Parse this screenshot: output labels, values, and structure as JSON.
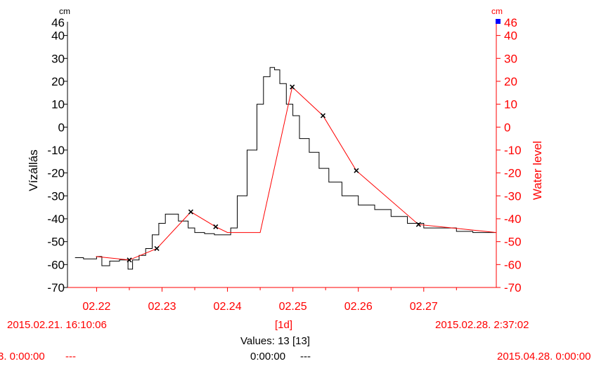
{
  "chart_data": {
    "type": "line",
    "left_axis": {
      "unit": "cm",
      "label": "Vízállás",
      "ticks": [
        40,
        30,
        20,
        10,
        0,
        -10,
        -20,
        -30,
        -40,
        -50,
        -60,
        -70
      ],
      "top_label": 46,
      "ylim": [
        -70,
        46
      ],
      "color": "#000000"
    },
    "right_axis": {
      "unit": "cm",
      "label": "Water level",
      "ticks": [
        40,
        30,
        20,
        10,
        0,
        -10,
        -20,
        -30,
        -40,
        -50,
        -60,
        -70
      ],
      "top_label": 46,
      "ylim": [
        -70,
        46
      ],
      "color": "#ff0000"
    },
    "x_axis": {
      "range_days": [
        21.673,
        28.109
      ],
      "ticks": [
        {
          "day": 22,
          "label": "02.22"
        },
        {
          "day": 23,
          "label": "02.23"
        },
        {
          "day": 24,
          "label": "02.24"
        },
        {
          "day": 25,
          "label": "02.25"
        },
        {
          "day": 26,
          "label": "02.26"
        },
        {
          "day": 27,
          "label": "02.27"
        }
      ]
    },
    "series": [
      {
        "color": "#000000",
        "style": "step",
        "points": [
          [
            21.67,
            -57
          ],
          [
            21.8,
            -57.5
          ],
          [
            21.93,
            -57.5
          ],
          [
            22.0,
            -56.5
          ],
          [
            22.08,
            -60.5
          ],
          [
            22.2,
            -58.5
          ],
          [
            22.35,
            -58
          ],
          [
            22.48,
            -62
          ],
          [
            22.55,
            -58
          ],
          [
            22.65,
            -56
          ],
          [
            22.75,
            -53
          ],
          [
            22.85,
            -47
          ],
          [
            22.95,
            -42
          ],
          [
            23.05,
            -38
          ],
          [
            23.12,
            -38
          ],
          [
            23.25,
            -41
          ],
          [
            23.4,
            -44
          ],
          [
            23.5,
            -46
          ],
          [
            23.65,
            -46.5
          ],
          [
            23.8,
            -47
          ],
          [
            23.95,
            -47
          ],
          [
            24.05,
            -44
          ],
          [
            24.15,
            -30
          ],
          [
            24.3,
            -10
          ],
          [
            24.45,
            10
          ],
          [
            24.55,
            22
          ],
          [
            24.65,
            26
          ],
          [
            24.72,
            25
          ],
          [
            24.8,
            19
          ],
          [
            24.9,
            10
          ],
          [
            25.0,
            5
          ],
          [
            25.1,
            -5
          ],
          [
            25.25,
            -11
          ],
          [
            25.4,
            -18
          ],
          [
            25.55,
            -24
          ],
          [
            25.75,
            -30
          ],
          [
            26.0,
            -34
          ],
          [
            26.25,
            -36
          ],
          [
            26.5,
            -39
          ],
          [
            26.75,
            -42
          ],
          [
            27.0,
            -44
          ],
          [
            27.25,
            -44
          ],
          [
            27.5,
            -45.5
          ],
          [
            27.75,
            -46
          ],
          [
            28.1,
            -46
          ]
        ]
      },
      {
        "color": "#ff0000",
        "style": "line",
        "points": [
          [
            21.99,
            -56.5
          ],
          [
            22.5,
            -58
          ],
          [
            22.92,
            -53
          ],
          [
            23.44,
            -37
          ],
          [
            23.82,
            -43.5
          ],
          [
            24.0,
            -46
          ],
          [
            24.5,
            -46
          ],
          [
            24.99,
            17.5
          ],
          [
            25.46,
            5
          ],
          [
            25.97,
            -19
          ],
          [
            26.92,
            -42.5
          ],
          [
            28.11,
            -46
          ]
        ]
      }
    ],
    "markers": [
      [
        22.5,
        -58
      ],
      [
        22.92,
        -53
      ],
      [
        23.44,
        -37
      ],
      [
        23.82,
        -43.5
      ],
      [
        24.99,
        17.5
      ],
      [
        25.46,
        5
      ],
      [
        25.97,
        -19
      ],
      [
        26.92,
        -42.5
      ]
    ]
  },
  "footer": {
    "start_datetime": "2015.02.21. 16:10:06",
    "interval": "[1d]",
    "end_datetime": "2015.02.28. 2:37:02",
    "values_count": "Values: 13 [13]",
    "left_bottom": "3. 0:00:00",
    "left_bottom_dash": "---",
    "mid_time": "0:00:00",
    "mid_dash": "---",
    "right_bottom": "2015.04.28. 0:00:00"
  },
  "colors": {
    "primary_axis": "#000000",
    "secondary_axis": "#ff0000",
    "marker_square": "#0000ff"
  }
}
